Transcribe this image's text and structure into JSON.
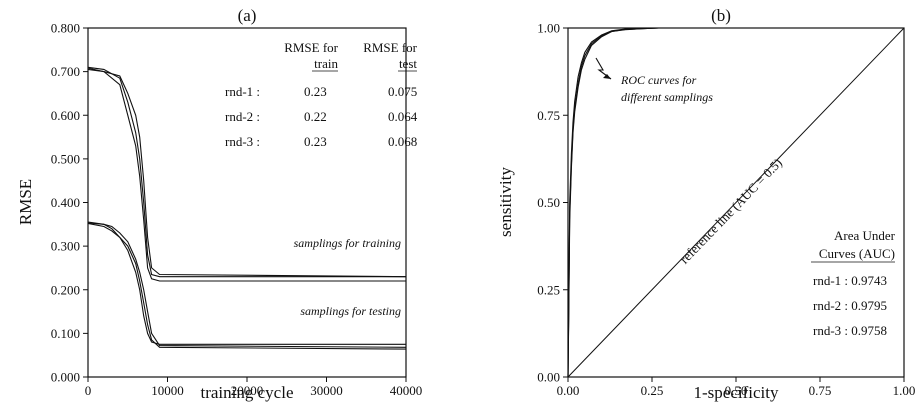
{
  "chart_data": [
    {
      "type": "line",
      "panel_label": "(a)",
      "xlabel": "training cycle",
      "ylabel": "RMSE",
      "xlim": [
        0,
        40000
      ],
      "ylim": [
        0,
        0.8
      ],
      "x_ticks": [
        0,
        10000,
        20000,
        30000,
        40000
      ],
      "x_tick_labels": [
        "0",
        "10000",
        "20000",
        "30000",
        "40000"
      ],
      "y_ticks": [
        0,
        0.1,
        0.2,
        0.3,
        0.4,
        0.5,
        0.6,
        0.7,
        0.8
      ],
      "y_tick_labels": [
        "0.000",
        "0.100",
        "0.200",
        "0.300",
        "0.400",
        "0.500",
        "0.600",
        "0.700",
        "0.800"
      ],
      "grid": false,
      "series": [
        {
          "group": "train",
          "x": [
            0,
            2000,
            4000,
            5000,
            6000,
            6500,
            7000,
            7500,
            8000,
            9000,
            40000
          ],
          "y": [
            0.71,
            0.705,
            0.685,
            0.63,
            0.56,
            0.5,
            0.4,
            0.28,
            0.235,
            0.23,
            0.23
          ]
        },
        {
          "group": "train",
          "x": [
            0,
            2000,
            4000,
            5000,
            6000,
            6500,
            7000,
            7500,
            8000,
            9000,
            40000
          ],
          "y": [
            0.708,
            0.7,
            0.67,
            0.6,
            0.53,
            0.46,
            0.36,
            0.25,
            0.225,
            0.22,
            0.22
          ]
        },
        {
          "group": "train",
          "x": [
            0,
            2000,
            4000,
            5000,
            6000,
            6500,
            7000,
            7500,
            8000,
            9000,
            40000
          ],
          "y": [
            0.705,
            0.7,
            0.69,
            0.65,
            0.6,
            0.55,
            0.45,
            0.32,
            0.25,
            0.235,
            0.23
          ]
        },
        {
          "group": "test",
          "x": [
            0,
            2000,
            3000,
            4000,
            5000,
            6000,
            6500,
            7000,
            7500,
            8000,
            9000,
            40000
          ],
          "y": [
            0.355,
            0.35,
            0.34,
            0.32,
            0.29,
            0.24,
            0.2,
            0.14,
            0.1,
            0.08,
            0.075,
            0.075
          ]
        },
        {
          "group": "test",
          "x": [
            0,
            2000,
            3000,
            4000,
            5000,
            6000,
            6500,
            7000,
            7500,
            8000,
            9000,
            40000
          ],
          "y": [
            0.352,
            0.345,
            0.335,
            0.32,
            0.3,
            0.26,
            0.22,
            0.17,
            0.12,
            0.085,
            0.068,
            0.064
          ]
        },
        {
          "group": "test",
          "x": [
            0,
            2000,
            3000,
            4000,
            5000,
            6000,
            6500,
            7000,
            7500,
            8000,
            9000,
            40000
          ],
          "y": [
            0.353,
            0.35,
            0.345,
            0.33,
            0.31,
            0.27,
            0.24,
            0.2,
            0.15,
            0.1,
            0.072,
            0.068
          ]
        }
      ],
      "annotations": {
        "train_label": "samplings for training",
        "test_label": "samplings for testing"
      },
      "table": {
        "header_train_1": "RMSE for",
        "header_train_2": "train",
        "header_test_1": "RMSE for",
        "header_test_2": "test",
        "rows": [
          {
            "label": "rnd-1 :",
            "train": "0.23",
            "test": "0.075"
          },
          {
            "label": "rnd-2 :",
            "train": "0.22",
            "test": "0.064"
          },
          {
            "label": "rnd-3 :",
            "train": "0.23",
            "test": "0.068"
          }
        ]
      }
    },
    {
      "type": "line",
      "panel_label": "(b)",
      "xlabel": "1-specificity",
      "ylabel": "sensitivity",
      "xlim": [
        0,
        1
      ],
      "ylim": [
        0,
        1
      ],
      "x_ticks": [
        0,
        0.25,
        0.5,
        0.75,
        1
      ],
      "x_tick_labels": [
        "0.00",
        "0.25",
        "0.50",
        "0.75",
        "1.00"
      ],
      "y_ticks": [
        0,
        0.25,
        0.5,
        0.75,
        1
      ],
      "y_tick_labels": [
        "0.00",
        "0.25",
        "0.50",
        "0.75",
        "1.00"
      ],
      "grid": false,
      "series": [
        {
          "x": [
            0,
            0.002,
            0.005,
            0.01,
            0.015,
            0.02,
            0.03,
            0.04,
            0.05,
            0.07,
            0.1,
            0.13,
            0.17,
            0.22,
            0.27,
            1.0
          ],
          "y": [
            0,
            0.17,
            0.45,
            0.6,
            0.7,
            0.76,
            0.83,
            0.88,
            0.91,
            0.95,
            0.975,
            0.99,
            0.995,
            0.998,
            1.0,
            1.0
          ]
        },
        {
          "x": [
            0,
            0.002,
            0.005,
            0.01,
            0.015,
            0.02,
            0.03,
            0.04,
            0.05,
            0.07,
            0.1,
            0.13,
            0.17,
            0.22,
            0.27,
            1.0
          ],
          "y": [
            0,
            0.2,
            0.5,
            0.64,
            0.73,
            0.79,
            0.86,
            0.9,
            0.93,
            0.96,
            0.98,
            0.992,
            0.997,
            0.999,
            1.0,
            1.0
          ]
        },
        {
          "x": [
            0,
            0.002,
            0.005,
            0.01,
            0.015,
            0.02,
            0.03,
            0.04,
            0.05,
            0.07,
            0.1,
            0.13,
            0.17,
            0.22,
            0.27,
            1.0
          ],
          "y": [
            0,
            0.18,
            0.47,
            0.61,
            0.71,
            0.77,
            0.84,
            0.89,
            0.92,
            0.955,
            0.978,
            0.99,
            0.996,
            0.998,
            1.0,
            1.0
          ]
        }
      ],
      "reference_line": {
        "x": [
          0,
          1
        ],
        "y": [
          0,
          1
        ],
        "label": "reference line (AUC = 0.5)"
      },
      "annotations": {
        "roc_line1": "ROC curves for",
        "roc_line2": "different samplings"
      },
      "auc": {
        "title1": "Area Under",
        "title2": "Curves (AUC)",
        "rows": [
          "rnd-1 : 0.9743",
          "rnd-2 : 0.9795",
          "rnd-3 : 0.9758"
        ]
      }
    }
  ]
}
